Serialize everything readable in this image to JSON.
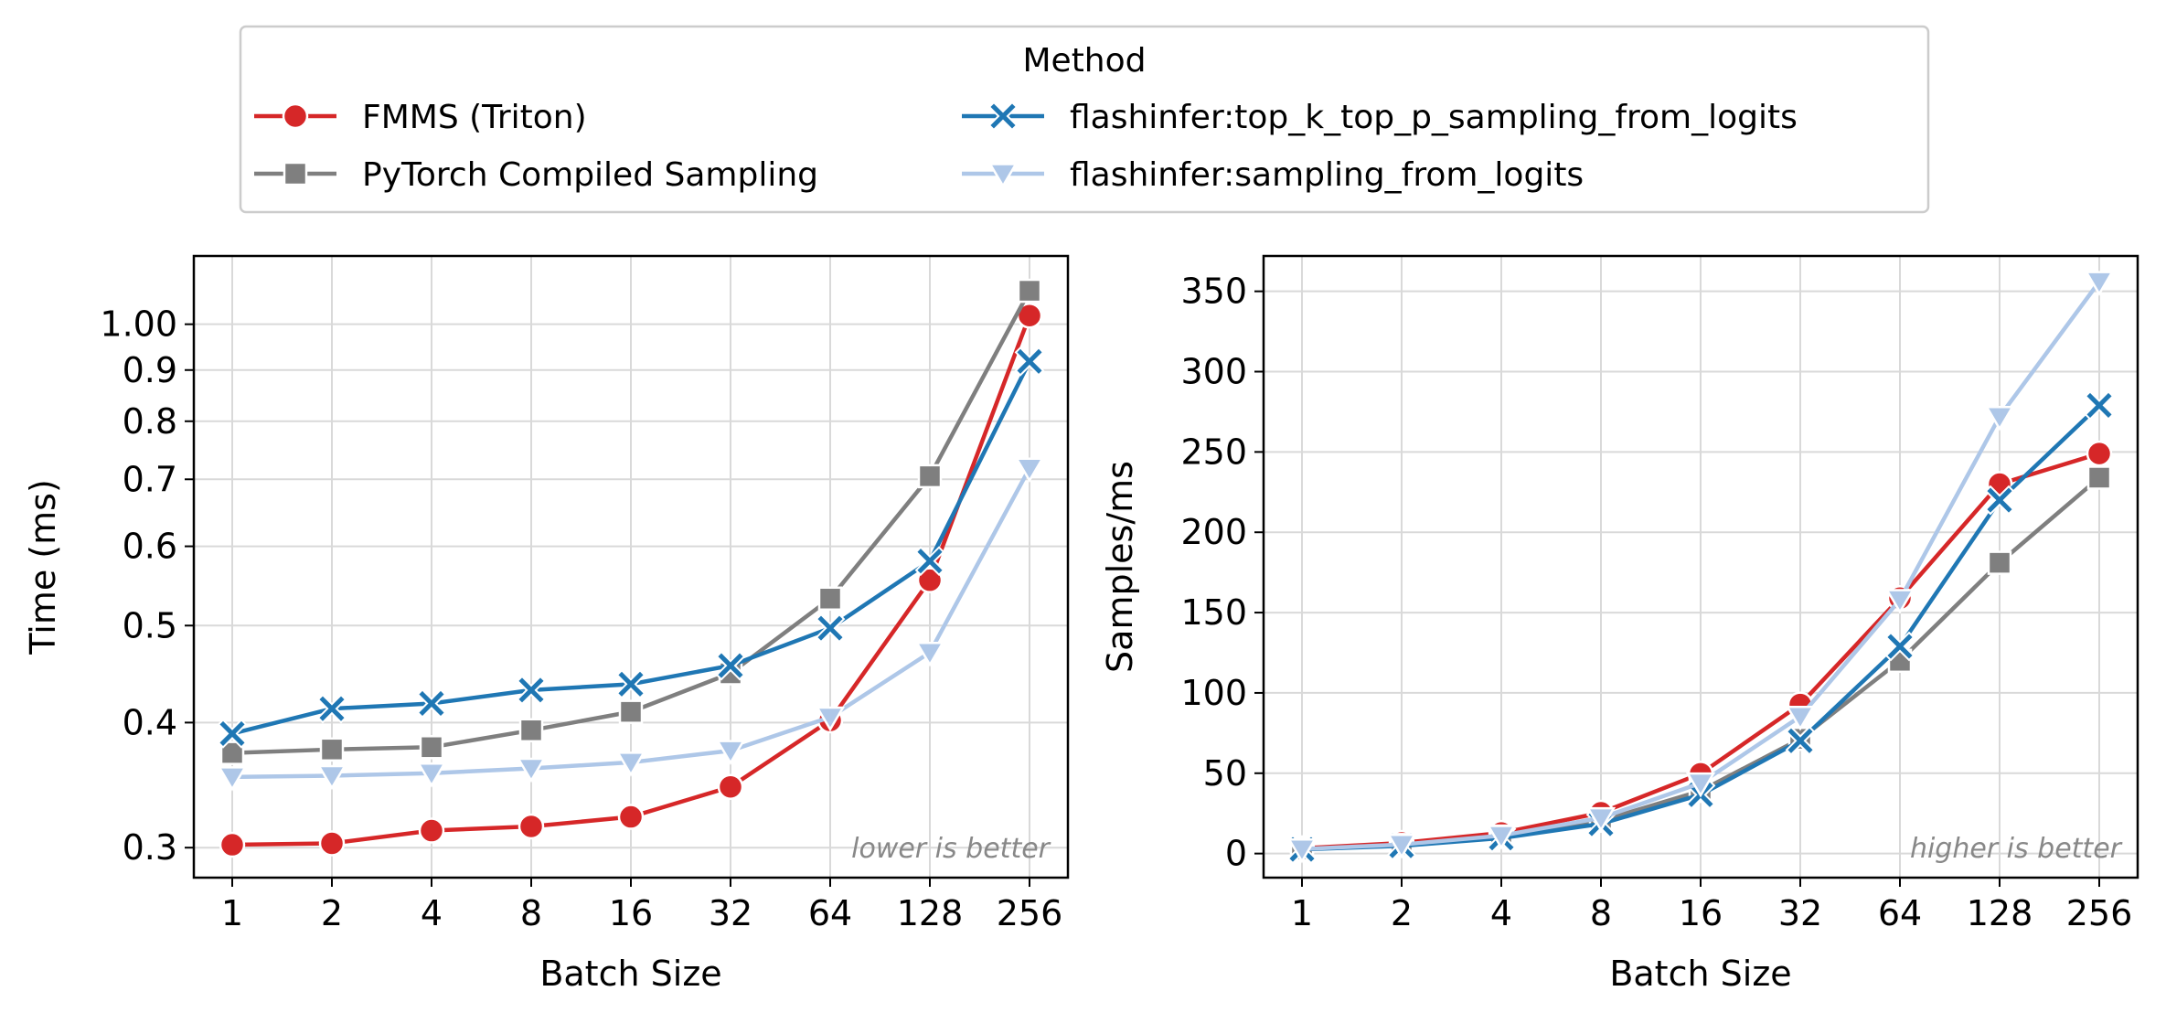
{
  "legend": {
    "title": "Method",
    "entries": [
      {
        "label": "FMMS (Triton)",
        "series": "fmms"
      },
      {
        "label": "PyTorch Compiled Sampling",
        "series": "torch"
      },
      {
        "label": "flashinfer:top_k_top_p_sampling_from_logits",
        "series": "fi_topk"
      },
      {
        "label": "flashinfer:sampling_from_logits",
        "series": "fi_samp"
      }
    ]
  },
  "colors": {
    "fmms": "#d62728",
    "torch": "#7f7f7f",
    "fi_topk": "#1f77b4",
    "fi_samp": "#aec7e8"
  },
  "markers": {
    "fmms": "circle",
    "torch": "square",
    "fi_topk": "x",
    "fi_samp": "triangle-down"
  },
  "chart_data": [
    {
      "type": "line",
      "xlabel": "Batch Size",
      "ylabel": "Time (ms)",
      "x": [
        "1",
        "2",
        "4",
        "8",
        "16",
        "32",
        "64",
        "128",
        "256"
      ],
      "yscale": "log",
      "ylim": [
        0.28,
        1.17
      ],
      "yticks": [
        0.3,
        0.4,
        0.5,
        0.6,
        0.7,
        0.8,
        0.9,
        1.0
      ],
      "ytick_labels": [
        "0.3",
        "0.4",
        "0.5",
        "0.6",
        "0.7",
        "0.8",
        "0.9",
        "1.00"
      ],
      "grid": true,
      "annotation": "lower is better",
      "series": [
        {
          "key": "fmms",
          "name": "FMMS (Triton)",
          "values": [
            0.302,
            0.303,
            0.312,
            0.315,
            0.322,
            0.345,
            0.402,
            0.555,
            1.02
          ]
        },
        {
          "key": "torch",
          "name": "PyTorch Compiled Sampling",
          "values": [
            0.373,
            0.376,
            0.378,
            0.393,
            0.41,
            0.448,
            0.532,
            0.705,
            1.08
          ]
        },
        {
          "key": "fi_topk",
          "name": "flashinfer:top_k_top_p_sampling_from_logits",
          "values": [
            0.39,
            0.413,
            0.418,
            0.431,
            0.437,
            0.456,
            0.497,
            0.58,
            0.918
          ]
        },
        {
          "key": "fi_samp",
          "name": "flashinfer:sampling_from_logits",
          "values": [
            0.353,
            0.354,
            0.356,
            0.36,
            0.365,
            0.375,
            0.405,
            0.47,
            0.718
          ]
        }
      ]
    },
    {
      "type": "line",
      "xlabel": "Batch Size",
      "ylabel": "Samples/ms",
      "x": [
        "1",
        "2",
        "4",
        "8",
        "16",
        "32",
        "64",
        "128",
        "256"
      ],
      "yscale": "linear",
      "ylim": [
        -15,
        372
      ],
      "yticks": [
        0,
        50,
        100,
        150,
        200,
        250,
        300,
        350
      ],
      "ytick_labels": [
        "0",
        "50",
        "100",
        "150",
        "200",
        "250",
        "300",
        "350"
      ],
      "grid": true,
      "annotation": "higher is better",
      "series": [
        {
          "key": "fmms",
          "name": "FMMS (Triton)",
          "values": [
            3.3,
            6.6,
            12.8,
            25.4,
            49.7,
            92.8,
            159,
            230,
            249
          ]
        },
        {
          "key": "torch",
          "name": "PyTorch Compiled Sampling",
          "values": [
            2.7,
            5.3,
            10.6,
            20.4,
            39.0,
            71.4,
            120,
            181,
            234
          ]
        },
        {
          "key": "fi_topk",
          "name": "flashinfer:top_k_top_p_sampling_from_logits",
          "values": [
            2.6,
            4.8,
            9.6,
            18.5,
            36.6,
            70.2,
            129,
            220,
            279
          ]
        },
        {
          "key": "fi_samp",
          "name": "flashinfer:sampling_from_logits",
          "values": [
            2.8,
            5.6,
            11.2,
            22.2,
            43.8,
            85.3,
            158,
            272,
            356
          ]
        }
      ]
    }
  ]
}
